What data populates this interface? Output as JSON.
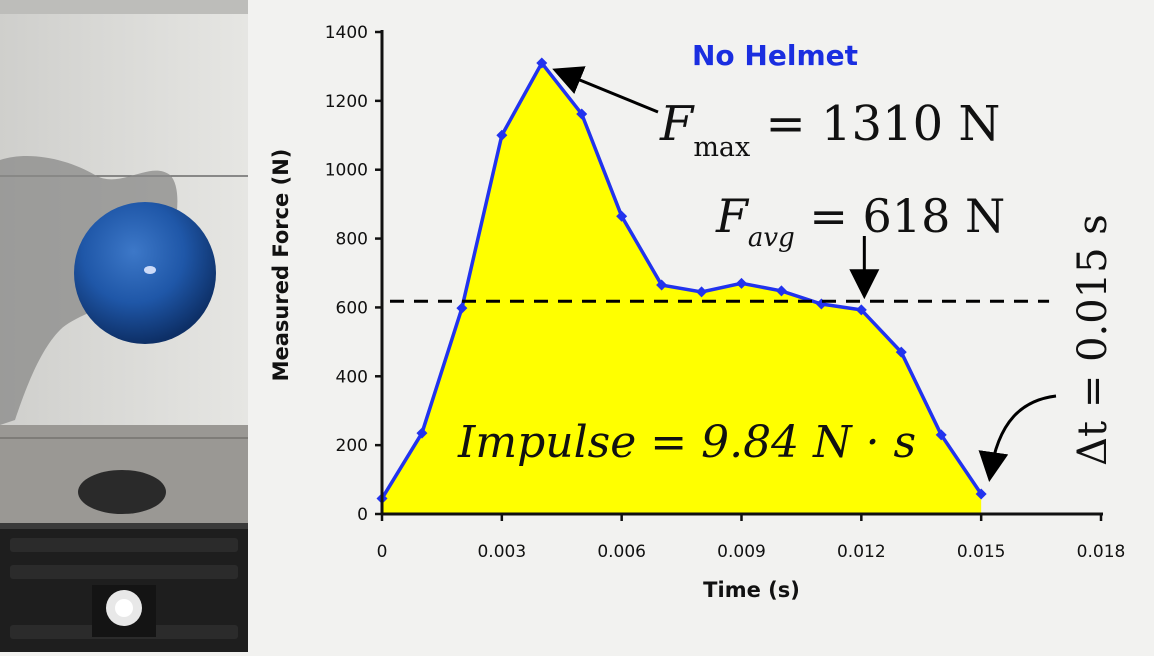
{
  "chart_data": {
    "type": "area",
    "title": "No Helmet",
    "xlabel": "Time (s)",
    "ylabel": "Measured Force (N)",
    "xlim": [
      0,
      0.018
    ],
    "ylim": [
      0,
      1400
    ],
    "x_ticks": [
      "0",
      "0.003",
      "0.006",
      "0.009",
      "0.012",
      "0.015",
      "0.018"
    ],
    "y_ticks": [
      "0",
      "200",
      "400",
      "600",
      "800",
      "1000",
      "1200",
      "1400"
    ],
    "grid": false,
    "series": [
      {
        "x": [
          0,
          0.001,
          0.002,
          0.003,
          0.004,
          0.005,
          0.006,
          0.007,
          0.008,
          0.009,
          0.01,
          0.011,
          0.012,
          0.013,
          0.014,
          0.015
        ],
        "y": [
          45,
          235,
          598,
          1100,
          1310,
          1162,
          865,
          665,
          645,
          670,
          648,
          610,
          593,
          470,
          230,
          58
        ]
      }
    ],
    "reference_line": {
      "y": 618
    },
    "annotations": {
      "fmax": {
        "symbol": "F",
        "subscript": "max",
        "rest": " = 1310 N",
        "x": 0.004,
        "y": 1310
      },
      "favg": {
        "symbol": "F",
        "subscript": "avg",
        "rest": " = 618 N",
        "x": 0.012,
        "y": 618
      },
      "impulse": {
        "text": "Impulse = 9.84 N · s"
      },
      "dt": {
        "text": "Δt = 0.015 s",
        "x": 0.015,
        "y": 58
      }
    },
    "colors": {
      "line": "#2233ee",
      "fill": "#ffff00",
      "title": "#1a2ee0",
      "dash": "#000000"
    }
  },
  "photo": {
    "description_icon": "blue-ball-over-force-platform"
  }
}
